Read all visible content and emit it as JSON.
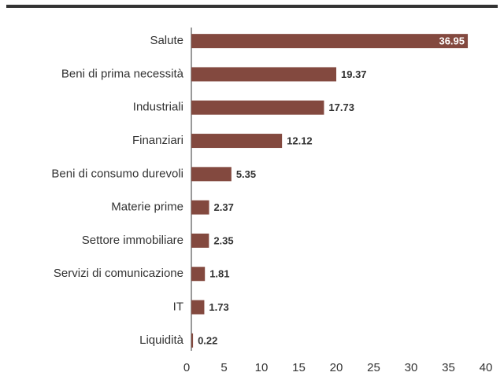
{
  "chart_data": {
    "type": "bar",
    "orientation": "horizontal",
    "categories": [
      "Salute",
      "Beni di prima necessità",
      "Industriali",
      "Finanziari",
      "Beni di consumo durevoli",
      "Materie prime",
      "Settore immobiliare",
      "Servizi di comunicazione",
      "IT",
      "Liquidità"
    ],
    "values": [
      36.95,
      19.37,
      17.73,
      12.12,
      5.35,
      2.37,
      2.35,
      1.81,
      1.73,
      0.22
    ],
    "color": "#83493f",
    "xlim": [
      0,
      40
    ],
    "xticks": [
      0,
      5,
      10,
      15,
      20,
      25,
      30,
      35,
      40
    ]
  }
}
